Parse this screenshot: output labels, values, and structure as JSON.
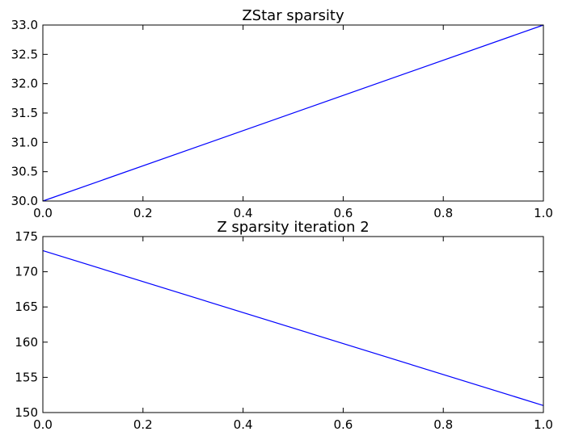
{
  "chart_data": [
    {
      "type": "line",
      "title": "ZStar sparsity",
      "xlabel": "",
      "ylabel": "",
      "xlim": [
        0.0,
        1.0
      ],
      "ylim": [
        30.0,
        33.0
      ],
      "x_ticks": [
        "0.0",
        "0.2",
        "0.4",
        "0.6",
        "0.8",
        "1.0"
      ],
      "y_ticks": [
        "30.0",
        "30.5",
        "31.0",
        "31.5",
        "32.0",
        "32.5",
        "33.0"
      ],
      "grid": false,
      "series": [
        {
          "x": [
            0.0,
            1.0
          ],
          "y": [
            30.0,
            33.0
          ],
          "color": "#0000ff"
        }
      ]
    },
    {
      "type": "line",
      "title": "Z sparsity iteration 2",
      "xlabel": "",
      "ylabel": "",
      "xlim": [
        0.0,
        1.0
      ],
      "ylim": [
        150,
        175
      ],
      "x_ticks": [
        "0.0",
        "0.2",
        "0.4",
        "0.6",
        "0.8",
        "1.0"
      ],
      "y_ticks": [
        "150",
        "155",
        "160",
        "165",
        "170",
        "175"
      ],
      "grid": false,
      "series": [
        {
          "x": [
            0.0,
            1.0
          ],
          "y": [
            173,
            151
          ],
          "color": "#0000ff"
        }
      ]
    }
  ]
}
